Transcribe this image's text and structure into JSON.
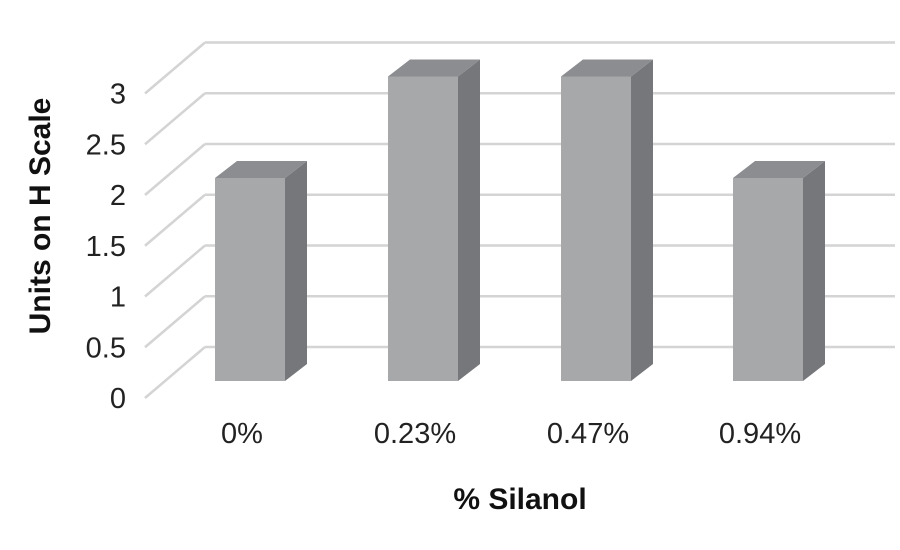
{
  "chart_data": {
    "type": "bar",
    "style": "3d-column",
    "categories": [
      "0%",
      "0.23%",
      "0.47%",
      "0.94%"
    ],
    "values": [
      2,
      3,
      3,
      2
    ],
    "xlabel": "% Silanol",
    "ylabel": "Units on H Scale",
    "ylim": [
      0,
      3
    ],
    "yticks": [
      "0",
      "0.5",
      "1",
      "1.5",
      "2",
      "2.5",
      "3"
    ],
    "grid": true,
    "legend": "none",
    "colors": {
      "bar_front": "#a7a8aa",
      "bar_side": "#76777a",
      "bar_top": "#8c8d90",
      "grid": "#d4d4d4"
    }
  }
}
